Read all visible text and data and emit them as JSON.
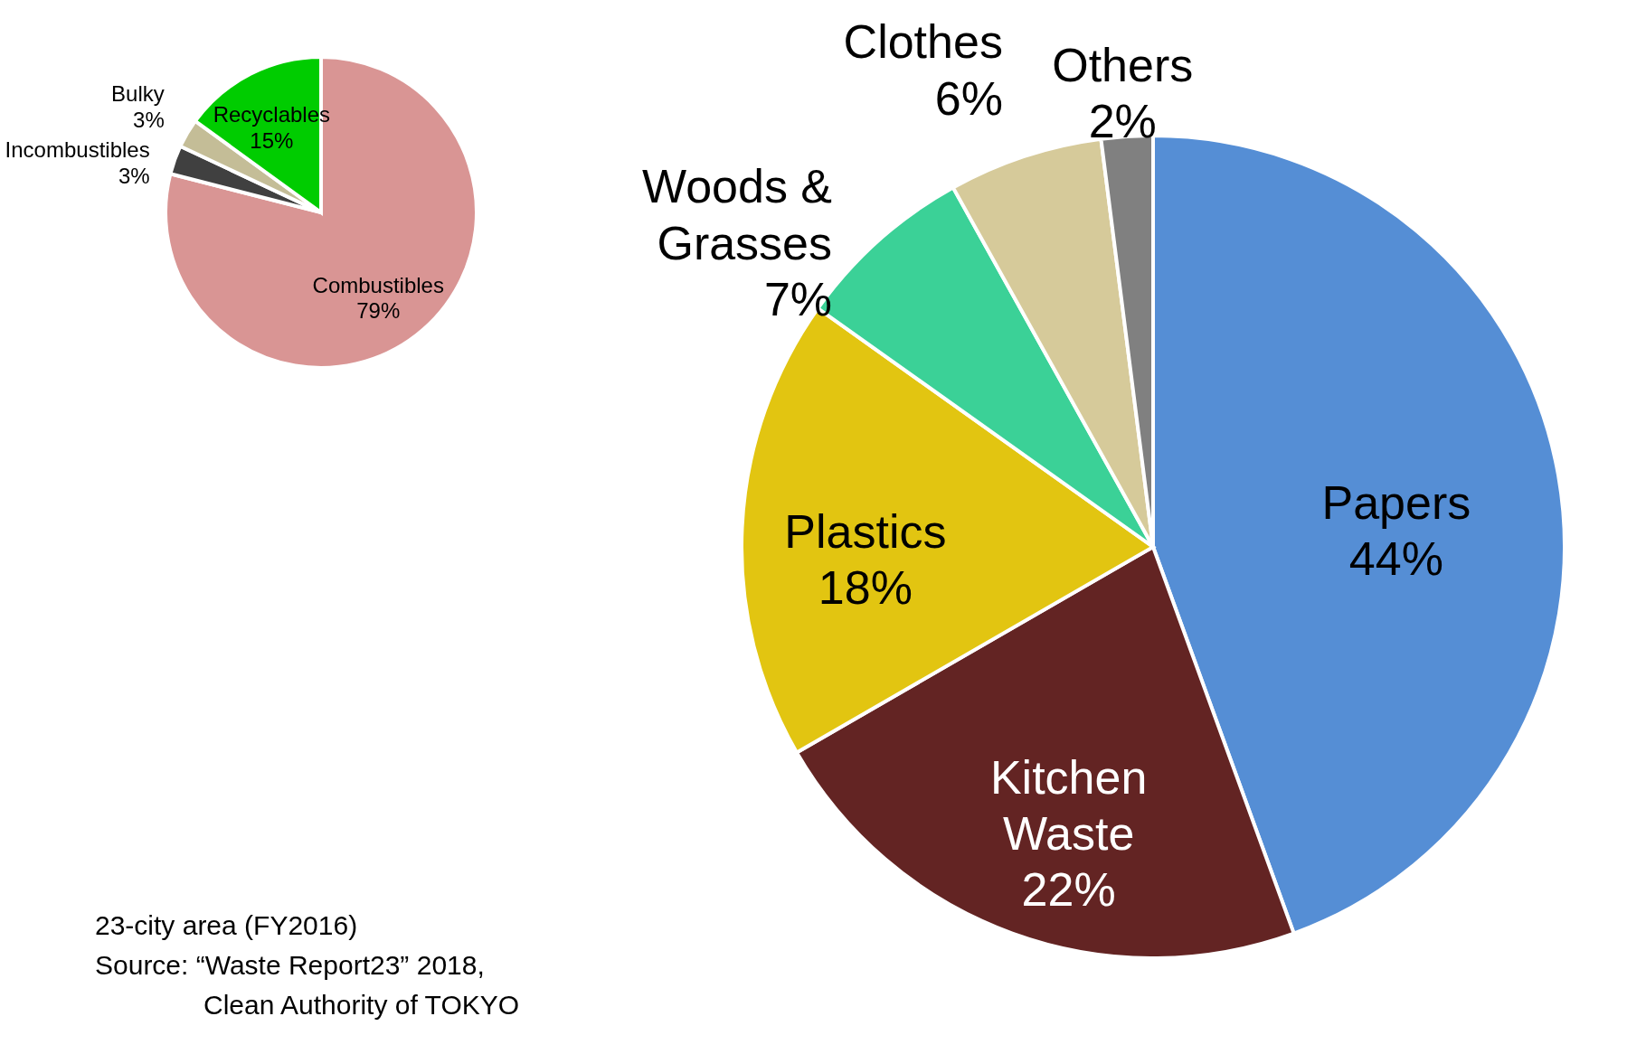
{
  "chart_data": [
    {
      "type": "pie",
      "categories": [
        "Combustibles",
        "Incombustibles",
        "Bulky",
        "Recyclables"
      ],
      "values": [
        79,
        3,
        3,
        15
      ],
      "colors": [
        "#d99594",
        "#404040",
        "#c4bd97",
        "#00cc00"
      ],
      "value_labels": [
        "79%",
        "3%",
        "3%",
        "15%"
      ],
      "annotations": [
        "23-city area (FY2016)",
        "Source: “Waste Report23” 2018, Clean Authority of TOKYO"
      ]
    },
    {
      "type": "pie",
      "categories": [
        "Papers",
        "Kitchen Waste",
        "Plastics",
        "Woods & Grasses",
        "Clothes",
        "Others"
      ],
      "values": [
        44,
        22,
        18,
        7,
        6,
        2
      ],
      "colors": [
        "#558ed5",
        "#632423",
        "#e2c511",
        "#3bd197",
        "#d6ca9a",
        "#808080"
      ],
      "value_labels": [
        "44%",
        "22%",
        "18%",
        "7%",
        "6%",
        "2%"
      ]
    }
  ]
}
